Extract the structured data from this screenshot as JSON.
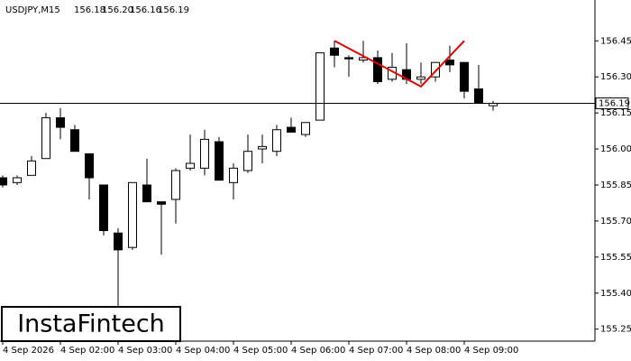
{
  "chart_data": {
    "type": "candlestick",
    "symbol": "USDJPY,M15",
    "header_values": [
      "156.18",
      "156.20",
      "156.16",
      "156.19"
    ],
    "logo": "InstaFintech",
    "categories": [
      "4 Sep 2026",
      null,
      null,
      null,
      "4 Sep 02:00",
      null,
      null,
      null,
      "4 Sep 03:00",
      null,
      null,
      null,
      "4 Sep 04:00",
      null,
      null,
      null,
      "4 Sep 05:00",
      null,
      null,
      null,
      "4 Sep 06:00",
      null,
      null,
      null,
      "4 Sep 07:00",
      null,
      null,
      null,
      "4 Sep 08:00",
      null,
      null,
      null,
      "4 Sep 09:00",
      null,
      null
    ],
    "open": [
      155.88,
      155.86,
      155.89,
      155.96,
      156.13,
      156.08,
      155.98,
      155.85,
      155.65,
      155.59,
      155.85,
      155.78,
      155.79,
      155.92,
      155.92,
      156.03,
      155.86,
      155.91,
      156.0,
      155.99,
      156.09,
      156.06,
      156.12,
      156.42,
      156.38,
      156.37,
      156.38,
      156.29,
      156.33,
      156.29,
      156.3,
      156.37,
      156.36,
      156.25,
      156.18
    ],
    "high": [
      155.89,
      155.89,
      155.97,
      156.15,
      156.17,
      156.1,
      155.98,
      155.85,
      155.67,
      155.86,
      155.96,
      155.78,
      155.92,
      156.06,
      156.08,
      156.05,
      155.94,
      156.06,
      156.06,
      156.1,
      156.13,
      156.11,
      156.4,
      156.45,
      156.39,
      156.45,
      156.41,
      156.4,
      156.44,
      156.36,
      156.36,
      156.43,
      156.36,
      156.35,
      156.2
    ],
    "low": [
      155.84,
      155.85,
      155.89,
      155.96,
      156.04,
      155.99,
      155.79,
      155.64,
      155.34,
      155.58,
      155.78,
      155.56,
      155.69,
      155.91,
      155.89,
      155.87,
      155.79,
      155.9,
      155.94,
      155.97,
      156.07,
      156.05,
      156.12,
      156.34,
      156.3,
      156.36,
      156.27,
      156.28,
      156.27,
      156.27,
      156.28,
      156.32,
      156.21,
      156.19,
      156.16
    ],
    "close": [
      155.85,
      155.88,
      155.95,
      156.13,
      156.09,
      155.99,
      155.88,
      155.66,
      155.58,
      155.86,
      155.78,
      155.77,
      155.91,
      155.94,
      156.04,
      155.87,
      155.92,
      155.99,
      156.01,
      156.08,
      156.07,
      156.11,
      156.4,
      156.39,
      156.375,
      156.38,
      156.28,
      156.34,
      156.29,
      156.3,
      156.36,
      156.35,
      156.24,
      156.19,
      156.19
    ],
    "pattern": {
      "color": "#e00000",
      "x": [
        23,
        29,
        32
      ],
      "y": [
        156.45,
        156.26,
        156.45
      ]
    },
    "current_price": 156.19,
    "ylim": [
      155.2,
      156.62
    ],
    "yticks": [
      156.45,
      {
        "value": 156.3,
        "label": "156.30"
      },
      156.15,
      {
        "value": 156.0,
        "label": "156.00"
      },
      155.85,
      {
        "value": 155.7,
        "label": "155.70"
      },
      155.55,
      {
        "value": 155.4,
        "label": "155.40"
      },
      155.25
    ]
  }
}
